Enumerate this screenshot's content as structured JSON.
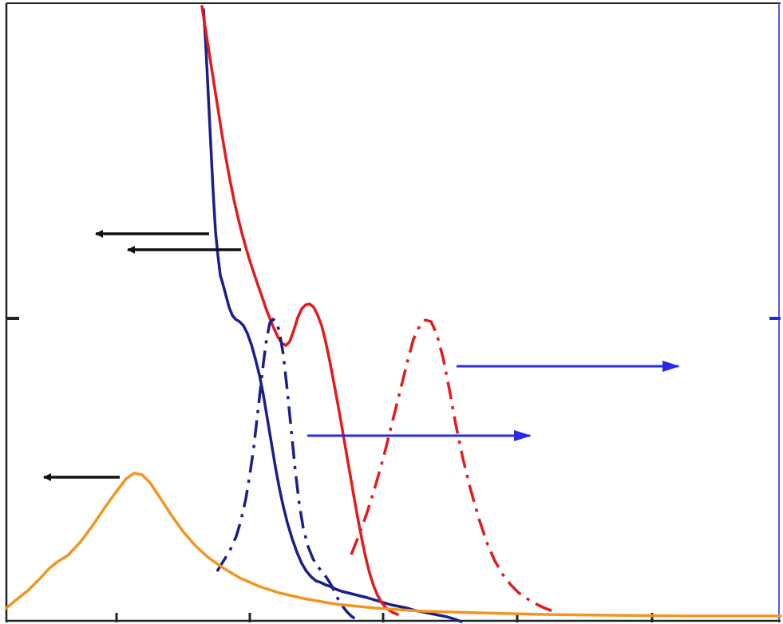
{
  "chart_data": {
    "type": "line",
    "title": "",
    "xlabel": "",
    "ylabel": "",
    "y2label": "",
    "grid": false,
    "legend": "none",
    "x_ticks": 5,
    "left_y_ticks": 1,
    "right_y_ticks": 1,
    "series": [
      {
        "axis": "left",
        "style": "solid",
        "color": "#1a1f8c",
        "x": [
          255,
          258,
          261,
          264,
          267,
          270,
          273,
          276,
          279,
          283,
          287,
          291,
          295,
          300,
          305,
          310,
          315,
          320,
          325,
          330,
          335,
          340,
          345,
          350,
          355,
          360,
          366,
          372,
          378,
          384,
          390,
          396,
          402,
          408,
          414,
          420,
          428,
          436,
          444,
          452,
          460,
          470,
          480,
          490,
          500,
          510,
          520,
          530,
          540,
          550,
          560,
          570,
          578
        ],
        "y": [
          12,
          60,
          120,
          180,
          240,
          290,
          320,
          345,
          355,
          370,
          385,
          395,
          400,
          403,
          408,
          418,
          432,
          450,
          470,
          495,
          525,
          555,
          585,
          612,
          635,
          655,
          675,
          692,
          706,
          716,
          723,
          728,
          730,
          733,
          735,
          738,
          741,
          743,
          745,
          747,
          749,
          752,
          755,
          758,
          760,
          762,
          765,
          767,
          769,
          771,
          773,
          776,
          779
        ]
      },
      {
        "axis": "left",
        "style": "solid",
        "color": "#e41a1c",
        "x": [
          253,
          258,
          263,
          268,
          273,
          278,
          283,
          288,
          293,
          298,
          303,
          308,
          313,
          318,
          323,
          328,
          333,
          338,
          343,
          348,
          353,
          358,
          363,
          368,
          373,
          378,
          383,
          388,
          393,
          398,
          403,
          408,
          413,
          418,
          423,
          428,
          433,
          438,
          443,
          448,
          453,
          458,
          463,
          468,
          473,
          478,
          483,
          488,
          493,
          498
        ],
        "y": [
          8,
          40,
          72,
          104,
          136,
          168,
          198,
          225,
          250,
          272,
          292,
          310,
          327,
          342,
          357,
          371,
          386,
          399,
          411,
          422,
          430,
          433,
          428,
          414,
          398,
          387,
          382,
          381,
          385,
          395,
          408,
          428,
          452,
          478,
          505,
          533,
          562,
          591,
          620,
          648,
          674,
          698,
          718,
          734,
          746,
          755,
          761,
          765,
          768,
          770
        ]
      },
      {
        "axis": "right",
        "style": "dashdot",
        "color": "#1a1f8c",
        "x": [
          272,
          280,
          288,
          296,
          302,
          308,
          313,
          318,
          322,
          326,
          330,
          334,
          338,
          342,
          346,
          350,
          355,
          360,
          365,
          370,
          375,
          380,
          386,
          392,
          398,
          404,
          410,
          416,
          422,
          428,
          434,
          440,
          446
        ],
        "y": [
          716,
          703,
          690,
          672,
          652,
          625,
          595,
          560,
          525,
          490,
          455,
          425,
          405,
          400,
          403,
          415,
          445,
          490,
          540,
          590,
          632,
          662,
          685,
          700,
          710,
          717,
          725,
          735,
          748,
          758,
          766,
          772,
          776
        ]
      },
      {
        "axis": "right",
        "style": "dashdot",
        "color": "#e41a1c",
        "x": [
          440,
          450,
          460,
          470,
          480,
          490,
          500,
          510,
          518,
          526,
          533,
          540,
          547,
          555,
          563,
          571,
          580,
          590,
          600,
          610,
          620,
          630,
          640,
          650,
          660,
          670,
          680,
          690,
          700
        ],
        "y": [
          695,
          670,
          642,
          610,
          575,
          535,
          495,
          455,
          425,
          408,
          401,
          403,
          418,
          448,
          488,
          532,
          575,
          615,
          650,
          680,
          703,
          720,
          733,
          743,
          750,
          756,
          761,
          765,
          768
        ]
      },
      {
        "axis": "left",
        "style": "solid",
        "color": "#f0961e",
        "x": [
          8,
          20,
          35,
          50,
          62,
          72,
          85,
          100,
          115,
          130,
          145,
          158,
          168,
          178,
          188,
          200,
          215,
          230,
          245,
          260,
          280,
          300,
          325,
          350,
          380,
          420,
          470,
          530,
          600,
          680,
          760,
          860,
          978
        ],
        "y": [
          762,
          752,
          740,
          725,
          712,
          704,
          696,
          680,
          660,
          638,
          617,
          600,
          593,
          595,
          605,
          623,
          646,
          667,
          684,
          698,
          712,
          724,
          735,
          743,
          750,
          757,
          762,
          766,
          768,
          770,
          771,
          772,
          772
        ]
      }
    ],
    "arrows": [
      {
        "direction": "left",
        "color": "#111111"
      },
      {
        "direction": "left",
        "color": "#111111"
      },
      {
        "direction": "left",
        "color": "#111111"
      },
      {
        "direction": "right",
        "color": "#2a2ae6"
      },
      {
        "direction": "right",
        "color": "#2a2ae6"
      }
    ]
  }
}
